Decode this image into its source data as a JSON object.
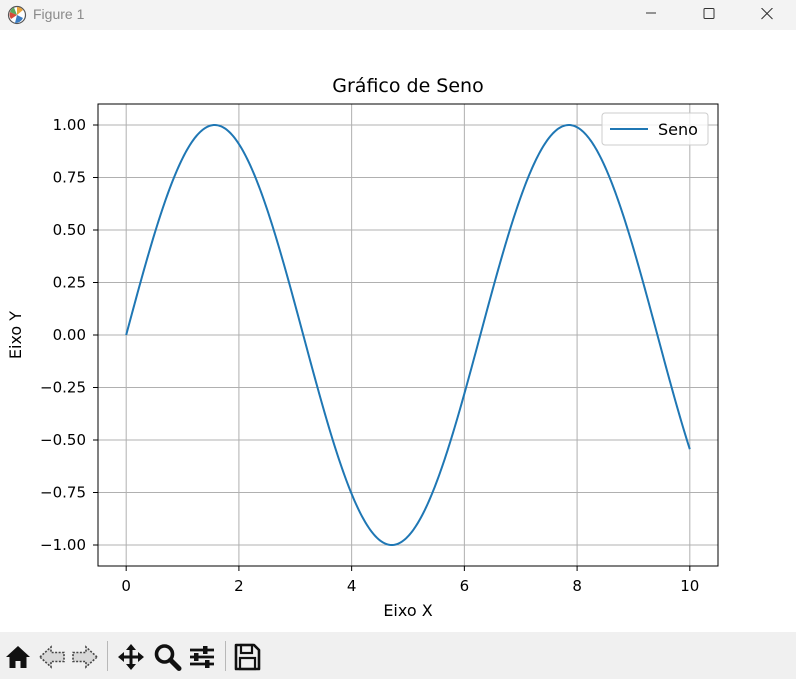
{
  "window": {
    "title": "Figure 1",
    "icons": [
      "app-icon",
      "minimize-icon",
      "maximize-icon",
      "close-icon"
    ]
  },
  "toolbar": {
    "buttons": [
      "home-icon",
      "back-icon",
      "forward-icon",
      "pan-icon",
      "zoom-icon",
      "configure-subplots-icon",
      "save-icon"
    ]
  },
  "chart_data": {
    "type": "line",
    "title": "Gráfico de Seno",
    "xlabel": "Eixo X",
    "ylabel": "Eixo Y",
    "xlim": [
      -0.5,
      10.5
    ],
    "ylim": [
      -1.1,
      1.1
    ],
    "xticks": [
      0,
      2,
      4,
      6,
      8,
      10
    ],
    "xtick_labels": [
      "0",
      "2",
      "4",
      "6",
      "8",
      "10"
    ],
    "yticks": [
      1.0,
      0.75,
      0.5,
      0.25,
      0.0,
      -0.25,
      -0.5,
      -0.75,
      -1.0
    ],
    "ytick_labels": [
      "1.00",
      "0.75",
      "0.50",
      "0.25",
      "0.00",
      "−0.25",
      "−0.50",
      "−0.75",
      "−1.00"
    ],
    "grid": true,
    "legend_position": "top-right",
    "series": [
      {
        "name": "Seno",
        "color": "#1f77b4",
        "function": "sin(x)",
        "x_range": [
          0,
          10
        ],
        "x": [
          0,
          0.5,
          1.0,
          1.5708,
          2.0,
          2.5,
          3.0,
          3.1416,
          3.5,
          4.0,
          4.5,
          4.7124,
          5.0,
          5.5,
          6.0,
          6.2832,
          6.5,
          7.0,
          7.5,
          7.854,
          8.0,
          8.5,
          9.0,
          9.5,
          10.0
        ],
        "y": [
          0.0,
          0.479,
          0.841,
          1.0,
          0.909,
          0.598,
          0.141,
          0.0,
          -0.351,
          -0.757,
          -0.978,
          -1.0,
          -0.959,
          -0.706,
          -0.279,
          0.0,
          0.215,
          0.657,
          0.938,
          1.0,
          0.989,
          0.798,
          0.412,
          -0.075,
          -0.544
        ]
      }
    ]
  }
}
